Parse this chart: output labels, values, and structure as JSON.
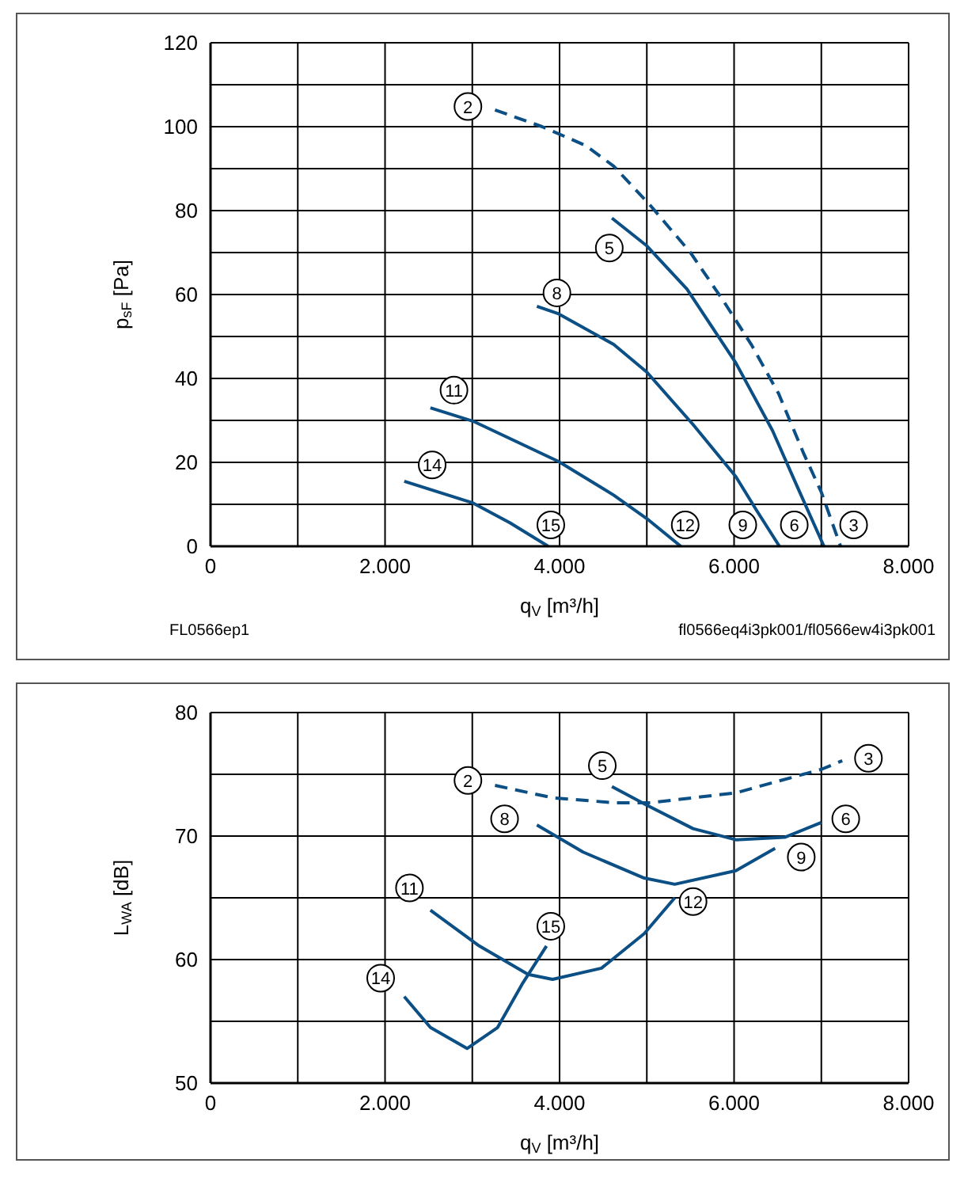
{
  "chart_data": [
    {
      "type": "line",
      "xlabel": "q$_{V}$ [m³/h]",
      "ylabel": "p$_{sF}$ [Pa]",
      "grid": true,
      "xlim": [
        0,
        8000
      ],
      "ylim": [
        0,
        120
      ],
      "xticks": [
        0,
        {
          "value": 1000,
          "label": null
        },
        {
          "value": 2000,
          "label": "2.000"
        },
        {
          "value": 3000,
          "label": null
        },
        {
          "value": 4000,
          "label": "4.000"
        },
        {
          "value": 5000,
          "label": null
        },
        {
          "value": 6000,
          "label": "6.000"
        },
        {
          "value": 7000,
          "label": null
        },
        {
          "value": 8000,
          "label": "8.000"
        }
      ],
      "yticks": [
        0,
        {
          "value": 10,
          "label": null
        },
        20,
        {
          "value": 30,
          "label": null
        },
        40,
        {
          "value": 50,
          "label": null
        },
        60,
        {
          "value": 70,
          "label": null
        },
        80,
        {
          "value": 90,
          "label": null
        },
        100,
        {
          "value": 110,
          "label": null
        },
        120
      ],
      "series": [
        {
          "color": "#0b4f85",
          "line_style": "dashed",
          "x": [
            3260,
            3800,
            4300,
            4620,
            5050,
            5500,
            5880,
            6200,
            6510,
            6800,
            7000,
            7220
          ],
          "values": [
            104,
            100,
            95.5,
            90.6,
            81,
            70,
            58.4,
            48,
            36.4,
            22,
            12.9,
            0
          ]
        },
        {
          "color": "#0b4f85",
          "line_style": "solid",
          "x": [
            4600,
            5000,
            5460,
            6020,
            6440,
            6720,
            7030
          ],
          "values": [
            78.2,
            71.6,
            61.3,
            43.7,
            27.6,
            14.4,
            0
          ]
        },
        {
          "color": "#0b4f85",
          "line_style": "solid",
          "x": [
            3740,
            3990,
            4620,
            5000,
            5530,
            6020,
            6260,
            6520
          ],
          "values": [
            57.2,
            55.4,
            48.1,
            41.5,
            29,
            16.6,
            8.5,
            0
          ]
        },
        {
          "color": "#0b4f85",
          "line_style": "solid",
          "x": [
            2520,
            3010,
            3990,
            4620,
            5000,
            5390
          ],
          "values": [
            33,
            29.8,
            20.2,
            12.2,
            6.6,
            0
          ]
        },
        {
          "color": "#0b4f85",
          "line_style": "solid",
          "x": [
            2220,
            3010,
            3430,
            3870
          ],
          "values": [
            15.5,
            10.3,
            5.6,
            0
          ]
        }
      ],
      "annotations": [
        "FL0566ep1",
        "fl0566eq4i3pk001/fl0566ew4i3pk001",
        {
          "text": "2",
          "x": 2950,
          "y": 104.8
        },
        {
          "text": "3",
          "x": 7370,
          "y": 5.1
        },
        {
          "text": "5",
          "x": 4570,
          "y": 71.1
        },
        {
          "text": "6",
          "x": 6690,
          "y": 5.1
        },
        {
          "text": "8",
          "x": 3970,
          "y": 60.4
        },
        {
          "text": "9",
          "x": 6100,
          "y": 5.1
        },
        {
          "text": "11",
          "x": 2790,
          "y": 37.2
        },
        {
          "text": "12",
          "x": 5440,
          "y": 5.1
        },
        {
          "text": "14",
          "x": 2540,
          "y": 19.4
        },
        {
          "text": "15",
          "x": 3900,
          "y": 5.1
        }
      ]
    },
    {
      "type": "line",
      "xlabel": "q$_{V}$ [m³/h]",
      "ylabel": "L$_{WA}$ [dB]",
      "grid": true,
      "xlim": [
        0,
        8000
      ],
      "ylim": [
        50,
        80
      ],
      "xticks": [
        0,
        {
          "value": 1000,
          "label": null
        },
        {
          "value": 2000,
          "label": "2.000"
        },
        {
          "value": 3000,
          "label": null
        },
        {
          "value": 4000,
          "label": "4.000"
        },
        {
          "value": 5000,
          "label": null
        },
        {
          "value": 6000,
          "label": "6.000"
        },
        {
          "value": 7000,
          "label": null
        },
        {
          "value": 8000,
          "label": "8.000"
        }
      ],
      "yticks": [
        50,
        {
          "value": 55,
          "label": null
        },
        60,
        {
          "value": 65,
          "label": null
        },
        70,
        {
          "value": 75,
          "label": null
        },
        80
      ],
      "series": [
        {
          "color": "#0b4f85",
          "line_style": "dashed",
          "x": [
            3260,
            3920,
            4620,
            5040,
            6020,
            7000,
            7240
          ],
          "values": [
            74.1,
            73.1,
            72.7,
            72.7,
            73.5,
            75.4,
            76.1
          ]
        },
        {
          "color": "#0b4f85",
          "line_style": "solid",
          "x": [
            4600,
            5000,
            5530,
            6020,
            6580,
            7000
          ],
          "values": [
            74,
            72.5,
            70.6,
            69.7,
            69.9,
            71.1
          ]
        },
        {
          "color": "#0b4f85",
          "line_style": "solid",
          "x": [
            3740,
            4270,
            4970,
            5320,
            6020,
            6470
          ],
          "values": [
            70.9,
            68.7,
            66.6,
            66.1,
            67.2,
            69
          ]
        },
        {
          "color": "#0b4f85",
          "line_style": "solid",
          "x": [
            2520,
            3080,
            3640,
            3920,
            4480,
            4970,
            5320
          ],
          "values": [
            64,
            61.1,
            58.8,
            58.4,
            59.3,
            62.1,
            65
          ]
        },
        {
          "color": "#0b4f85",
          "line_style": "solid",
          "x": [
            2220,
            2520,
            2940,
            3290,
            3570,
            3850
          ],
          "values": [
            57,
            54.5,
            52.8,
            54.5,
            58,
            61.1
          ]
        }
      ],
      "annotations": [
        {
          "text": "2",
          "x": 2950,
          "y": 74.5
        },
        {
          "text": "3",
          "x": 7540,
          "y": 76.3
        },
        {
          "text": "5",
          "x": 4490,
          "y": 75.7
        },
        {
          "text": "6",
          "x": 7280,
          "y": 71.4
        },
        {
          "text": "8",
          "x": 3370,
          "y": 71.4
        },
        {
          "text": "9",
          "x": 6770,
          "y": 68.3
        },
        {
          "text": "11",
          "x": 2280,
          "y": 65.8
        },
        {
          "text": "12",
          "x": 5530,
          "y": 64.7
        },
        {
          "text": "15",
          "x": 3900,
          "y": 62.7
        },
        {
          "text": "14",
          "x": 1950,
          "y": 58.5
        }
      ]
    }
  ]
}
